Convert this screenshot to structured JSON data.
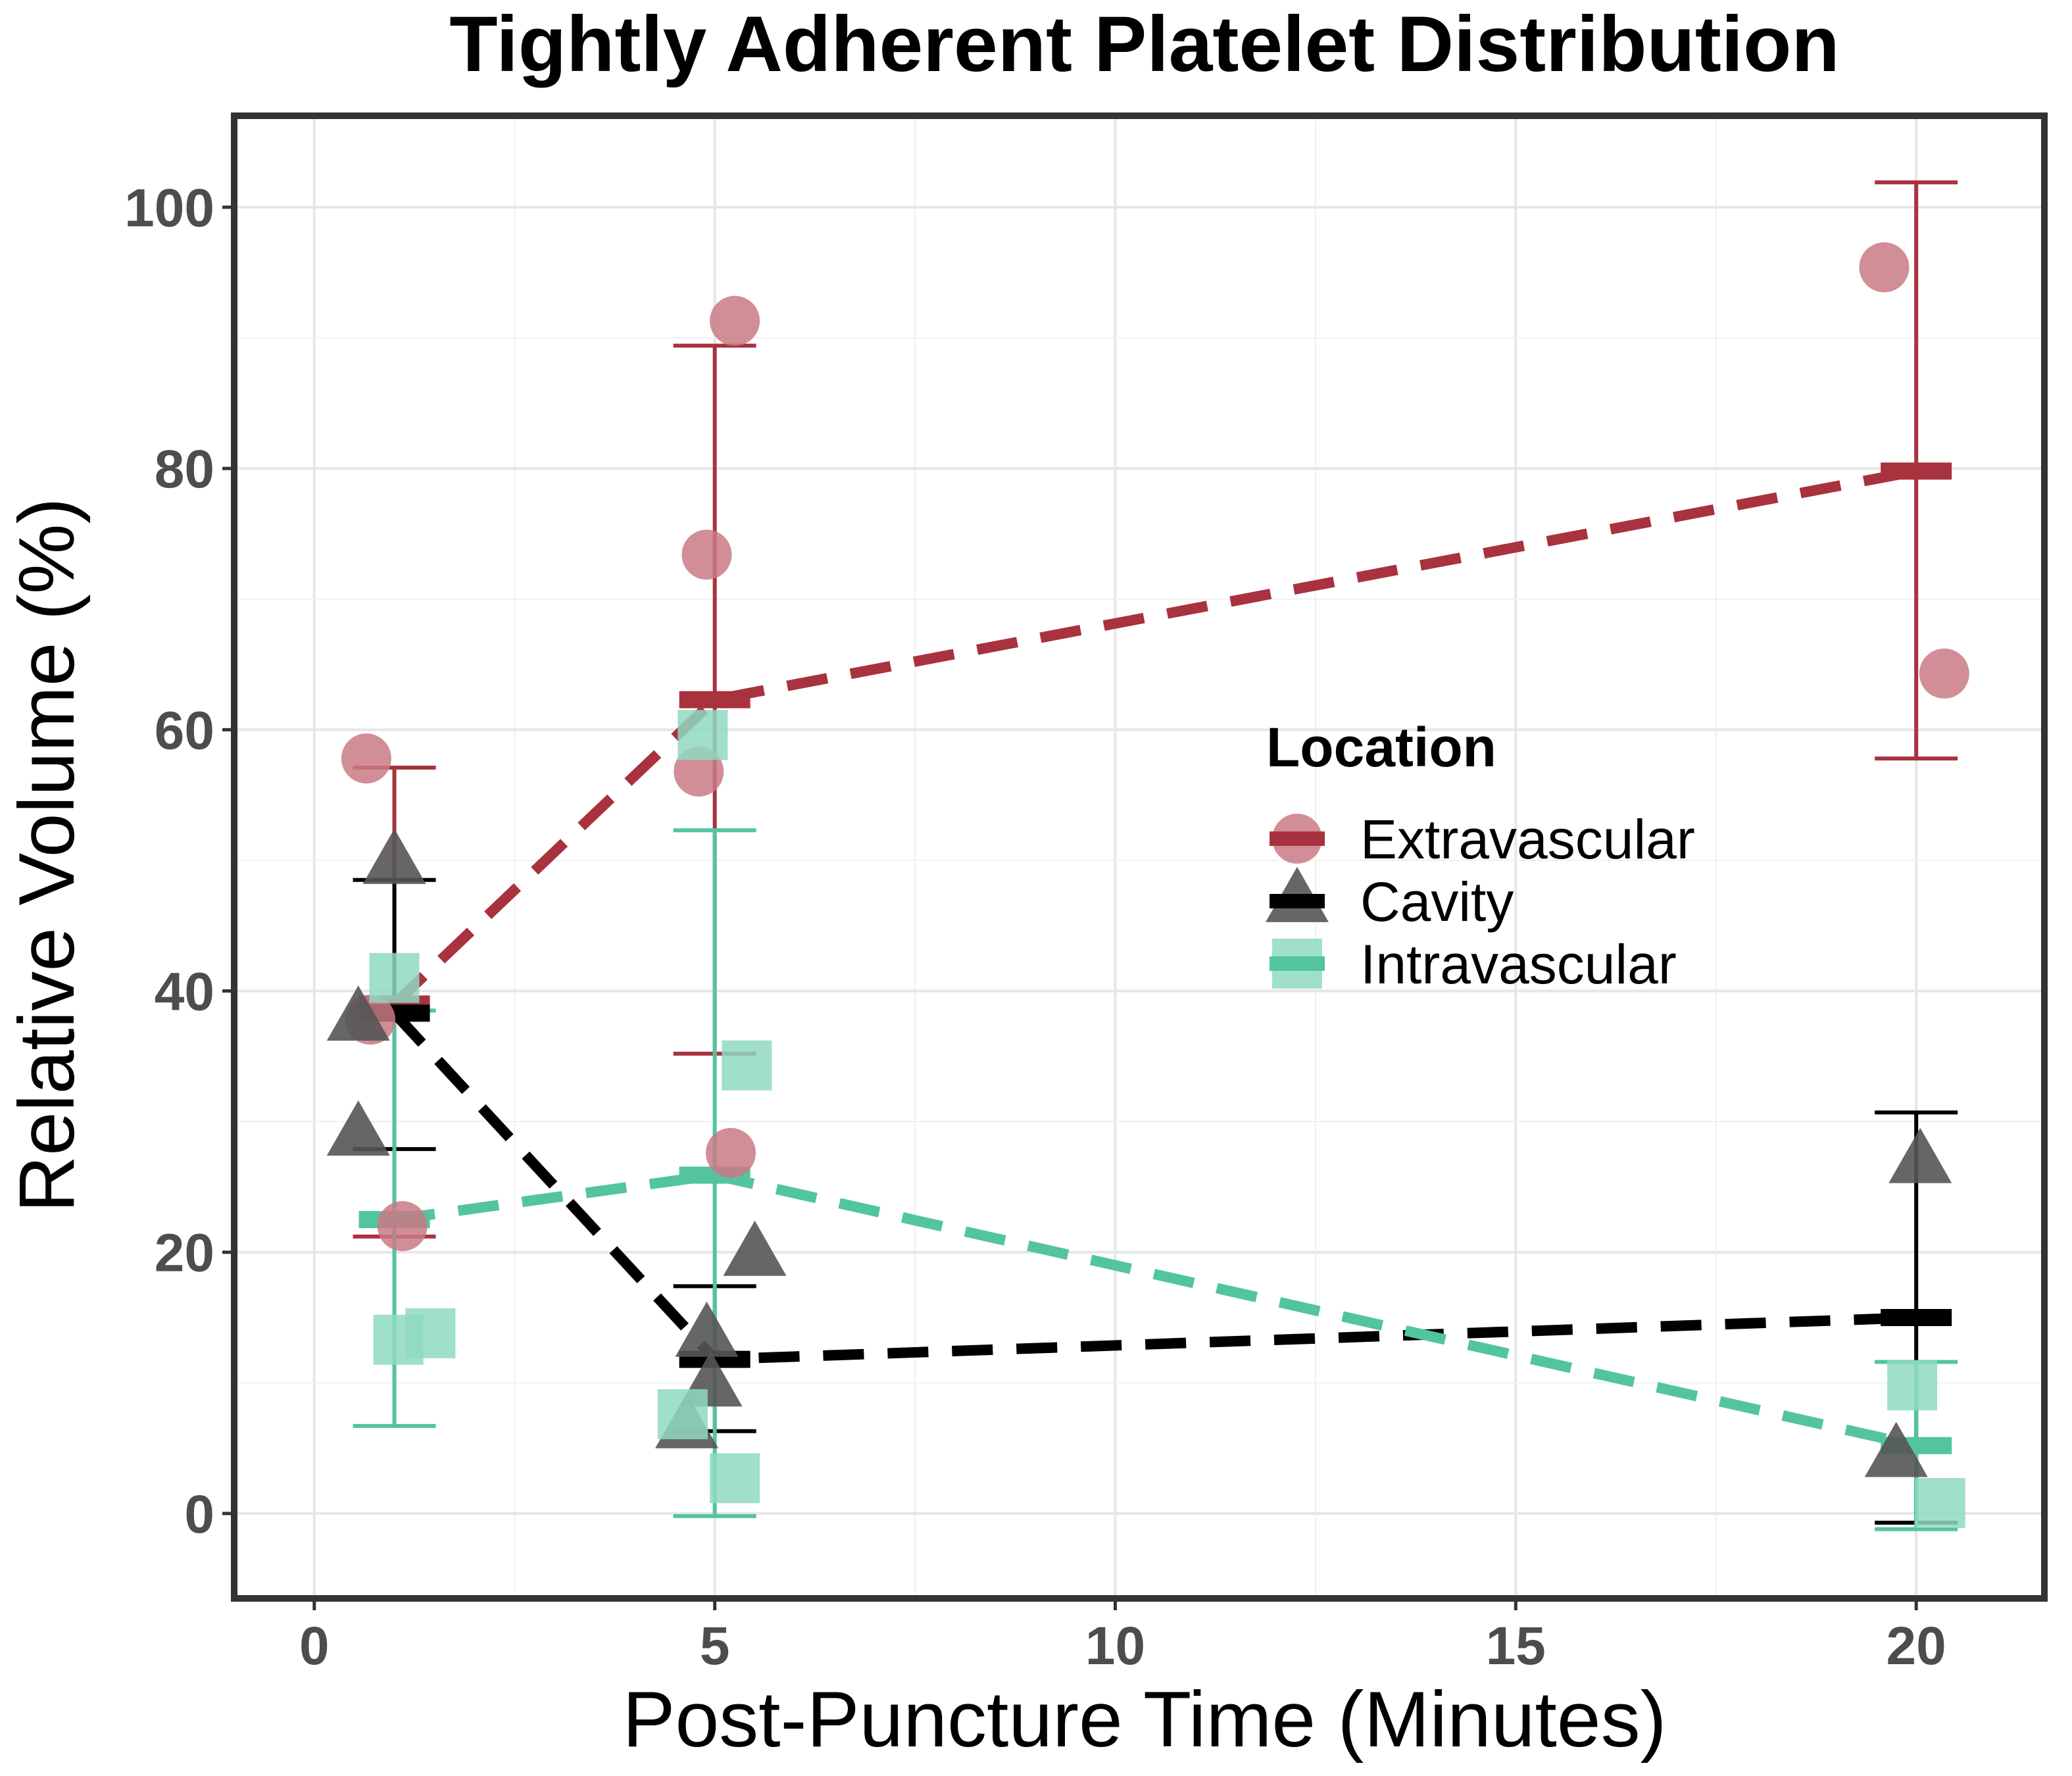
{
  "chart_data": {
    "type": "scatter",
    "title": "Tightly Adherent Platelet Distribution",
    "xlabel": "Post-Puncture Time (Minutes)",
    "ylabel": "Relative Volume (%)",
    "xlim": [
      -1,
      21.6
    ],
    "ylim": [
      -6.5,
      107
    ],
    "x_ticks": [
      0,
      5,
      10,
      15,
      20
    ],
    "y_ticks": [
      0,
      20,
      40,
      60,
      80,
      100
    ],
    "grid": true,
    "legend": {
      "title": "Location",
      "placement": "right-middle inside plot",
      "entries": [
        "Extravascular",
        "Cavity",
        "Intravascular"
      ]
    },
    "series": [
      {
        "name": "Extravascular",
        "color": "#A8323E",
        "point_color": "#C97A85",
        "marker": "circle",
        "points": [
          {
            "x": 0.65,
            "y": 57.8
          },
          {
            "x": 0.7,
            "y": 37.8
          },
          {
            "x": 1.1,
            "y": 22.0
          },
          {
            "x": 4.8,
            "y": 56.8
          },
          {
            "x": 4.9,
            "y": 73.4
          },
          {
            "x": 5.25,
            "y": 91.3
          },
          {
            "x": 5.2,
            "y": 27.6
          },
          {
            "x": 19.6,
            "y": 95.4
          },
          {
            "x": 20.35,
            "y": 64.3
          }
        ],
        "means": [
          {
            "x": 1,
            "y": 39.0
          },
          {
            "x": 5,
            "y": 62.3
          },
          {
            "x": 20,
            "y": 79.8
          }
        ],
        "error_bars": [
          {
            "x": 1,
            "low": 21.2,
            "high": 57.1
          },
          {
            "x": 5,
            "low": 35.2,
            "high": 89.4
          },
          {
            "x": 20,
            "low": 57.8,
            "high": 101.9
          }
        ]
      },
      {
        "name": "Cavity",
        "color": "#000000",
        "point_color": "#555555",
        "marker": "triangle",
        "points": [
          {
            "x": 0.55,
            "y": 37.8
          },
          {
            "x": 0.55,
            "y": 29.0
          },
          {
            "x": 1.0,
            "y": 49.8
          },
          {
            "x": 4.65,
            "y": 6.6
          },
          {
            "x": 4.95,
            "y": 9.8
          },
          {
            "x": 4.9,
            "y": 13.6
          },
          {
            "x": 5.5,
            "y": 19.8
          },
          {
            "x": 19.75,
            "y": 4.4
          },
          {
            "x": 20.05,
            "y": 26.9
          }
        ],
        "means": [
          {
            "x": 1,
            "y": 38.3
          },
          {
            "x": 5,
            "y": 11.8
          },
          {
            "x": 20,
            "y": 15.0
          }
        ],
        "error_bars": [
          {
            "x": 1,
            "low": 27.9,
            "high": 48.5
          },
          {
            "x": 5,
            "low": 6.3,
            "high": 17.4
          },
          {
            "x": 20,
            "low": -0.7,
            "high": 30.7
          }
        ]
      },
      {
        "name": "Intravascular",
        "color": "#52C4A0",
        "point_color": "#8FD9C1",
        "marker": "square",
        "points": [
          {
            "x": 1.0,
            "y": 41.0
          },
          {
            "x": 1.05,
            "y": 13.3
          },
          {
            "x": 1.45,
            "y": 13.8
          },
          {
            "x": 4.6,
            "y": 7.6
          },
          {
            "x": 4.85,
            "y": 59.6
          },
          {
            "x": 5.25,
            "y": 2.7
          },
          {
            "x": 5.4,
            "y": 34.3
          },
          {
            "x": 19.95,
            "y": 9.8
          },
          {
            "x": 20.3,
            "y": 0.8
          }
        ],
        "means": [
          {
            "x": 1,
            "y": 22.5
          },
          {
            "x": 5,
            "y": 25.9
          },
          {
            "x": 20,
            "y": 5.2
          }
        ],
        "error_bars": [
          {
            "x": 1,
            "low": 6.7,
            "high": 38.5
          },
          {
            "x": 5,
            "low": -0.2,
            "high": 52.3
          },
          {
            "x": 20,
            "low": -1.2,
            "high": 11.6
          }
        ]
      }
    ]
  }
}
